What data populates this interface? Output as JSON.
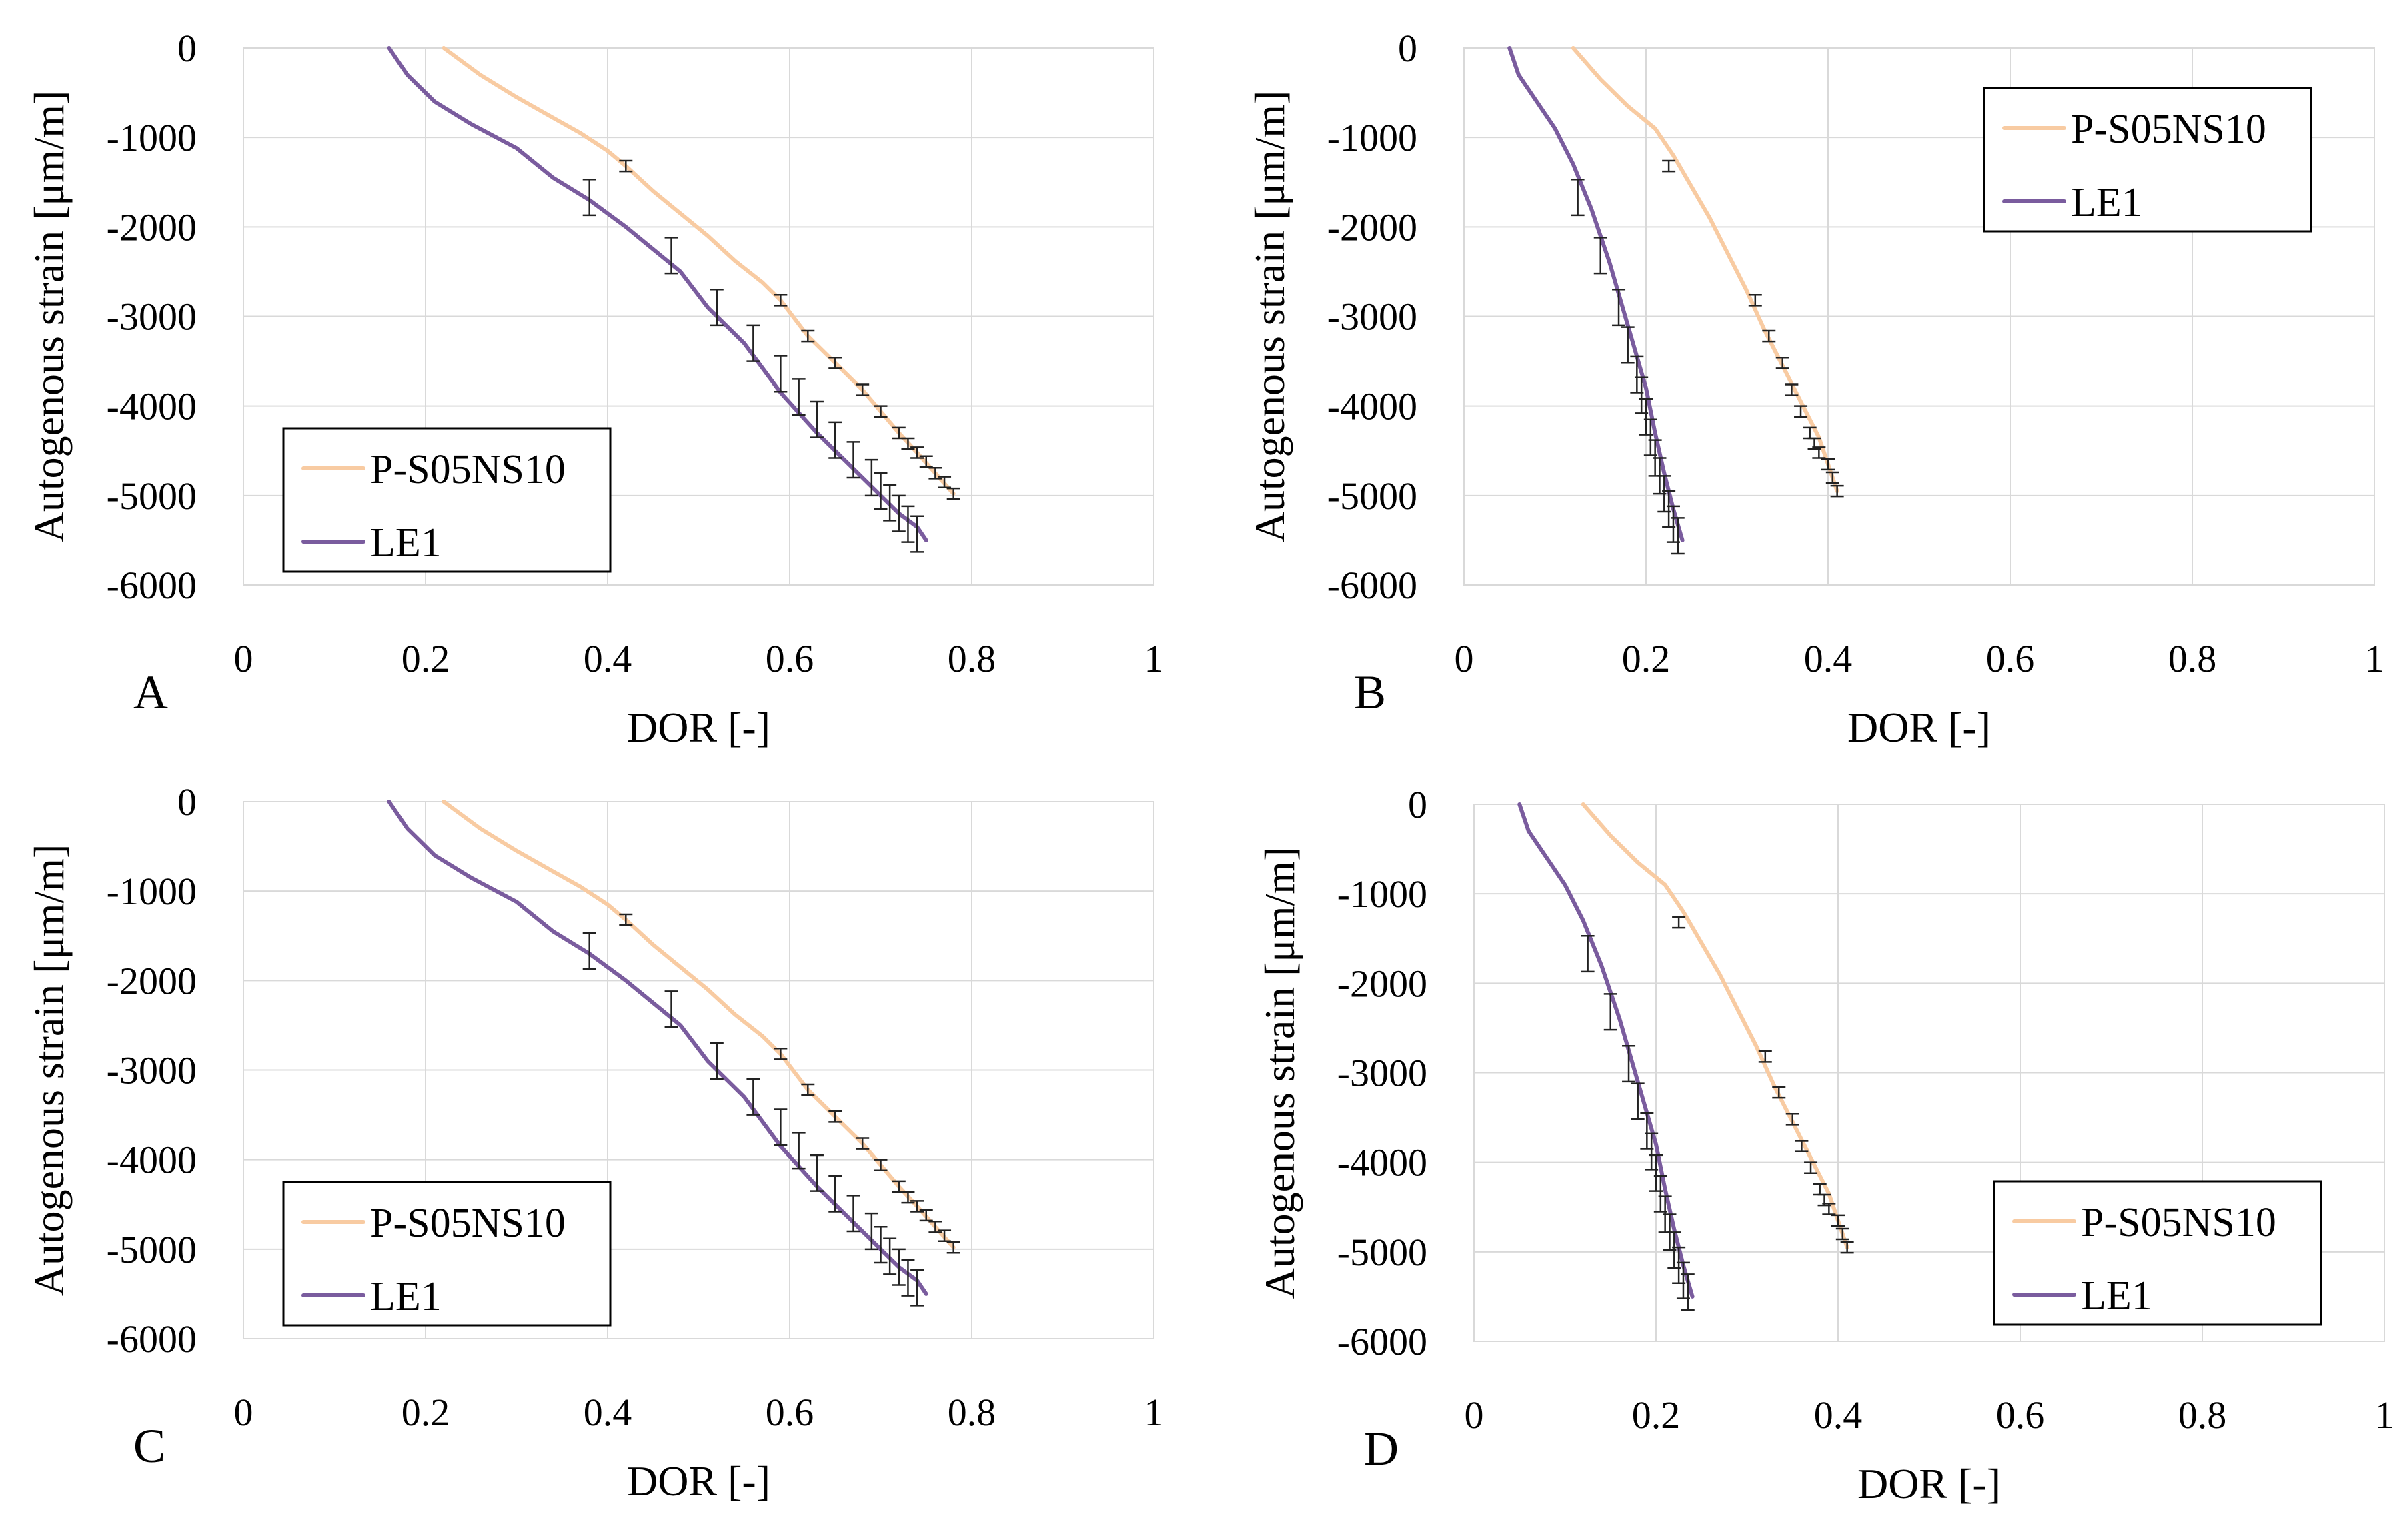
{
  "chart_data": [
    {
      "type": "line",
      "panel_label": "A",
      "xlabel": "DOR [-]",
      "ylabel": "Autogenous strain [μm/m]",
      "xlim": [
        0,
        1
      ],
      "ylim": [
        -6000,
        0
      ],
      "xticks": [
        "0",
        "0.2",
        "0.4",
        "0.6",
        "0.8",
        "1"
      ],
      "yticks": [
        "0",
        "-1000",
        "-2000",
        "-3000",
        "-4000",
        "-5000",
        "-6000"
      ],
      "legend": "bottom-left",
      "series": [
        {
          "name": "P-S05NS10",
          "color": "#f8cba2",
          "x": [
            0.22,
            0.26,
            0.3,
            0.34,
            0.37,
            0.4,
            0.42,
            0.45,
            0.48,
            0.51,
            0.54,
            0.57,
            0.59,
            0.62,
            0.65,
            0.68,
            0.7,
            0.72,
            0.74,
            0.76,
            0.78
          ],
          "y": [
            0,
            -300,
            -550,
            -780,
            -950,
            -1150,
            -1320,
            -1600,
            -1850,
            -2100,
            -2380,
            -2620,
            -2820,
            -3220,
            -3520,
            -3820,
            -4060,
            -4300,
            -4520,
            -4750,
            -4980
          ],
          "error_x": [
            0.42,
            0.59,
            0.62,
            0.65,
            0.68,
            0.7,
            0.72,
            0.73,
            0.74,
            0.75,
            0.76,
            0.77,
            0.78
          ],
          "error_y": [
            -1320,
            -2820,
            -3220,
            -3520,
            -3820,
            -4060,
            -4300,
            -4420,
            -4520,
            -4620,
            -4750,
            -4850,
            -4980
          ],
          "error_size": 60
        },
        {
          "name": "LE1",
          "color": "#7a5c9e",
          "x": [
            0.16,
            0.18,
            0.21,
            0.25,
            0.3,
            0.34,
            0.38,
            0.42,
            0.45,
            0.48,
            0.51,
            0.55,
            0.59,
            0.63,
            0.67,
            0.7,
            0.72,
            0.74,
            0.75
          ],
          "y": [
            0,
            -300,
            -600,
            -850,
            -1120,
            -1450,
            -1700,
            -2000,
            -2250,
            -2500,
            -2900,
            -3300,
            -3850,
            -4300,
            -4700,
            -5000,
            -5200,
            -5350,
            -5500
          ],
          "error_x": [
            0.38,
            0.47,
            0.52,
            0.56,
            0.59,
            0.61,
            0.63,
            0.65,
            0.67,
            0.69,
            0.7,
            0.71,
            0.72,
            0.73,
            0.74
          ],
          "error_y": [
            -1670,
            -2320,
            -2900,
            -3300,
            -3640,
            -3900,
            -4150,
            -4380,
            -4600,
            -4800,
            -4950,
            -5080,
            -5200,
            -5320,
            -5430
          ],
          "error_size": 200
        }
      ]
    },
    {
      "type": "line",
      "panel_label": "B",
      "xlabel": "DOR [-]",
      "ylabel": "Autogenous strain [μm/m]",
      "xlim": [
        0,
        1
      ],
      "ylim": [
        -6000,
        0
      ],
      "xticks": [
        "0",
        "0.2",
        "0.4",
        "0.6",
        "0.8",
        "1"
      ],
      "yticks": [
        "0",
        "-1000",
        "-2000",
        "-3000",
        "-4000",
        "-5000",
        "-6000"
      ],
      "legend": "top-right",
      "series": [
        {
          "name": "P-S05NS10",
          "color": "#f8cba2",
          "x": [
            0.12,
            0.15,
            0.18,
            0.21,
            0.23,
            0.25,
            0.27,
            0.29,
            0.31,
            0.33,
            0.35,
            0.37,
            0.39,
            0.4,
            0.41
          ],
          "y": [
            0,
            -350,
            -650,
            -900,
            -1200,
            -1550,
            -1900,
            -2300,
            -2700,
            -3150,
            -3550,
            -3950,
            -4350,
            -4650,
            -4950
          ],
          "error_x": [
            0.225,
            0.32,
            0.335,
            0.35,
            0.36,
            0.37,
            0.38,
            0.385,
            0.39,
            0.4,
            0.405,
            0.41
          ],
          "error_y": [
            -1320,
            -2820,
            -3220,
            -3520,
            -3820,
            -4060,
            -4300,
            -4420,
            -4520,
            -4650,
            -4800,
            -4950
          ],
          "error_size": 60
        },
        {
          "name": "LE1",
          "color": "#7a5c9e",
          "x": [
            0.05,
            0.06,
            0.08,
            0.1,
            0.12,
            0.14,
            0.16,
            0.18,
            0.2,
            0.21,
            0.22,
            0.23,
            0.24
          ],
          "y": [
            0,
            -300,
            -600,
            -900,
            -1300,
            -1800,
            -2400,
            -3100,
            -3800,
            -4300,
            -4750,
            -5150,
            -5500
          ],
          "error_x": [
            0.125,
            0.15,
            0.17,
            0.18,
            0.19,
            0.195,
            0.2,
            0.205,
            0.21,
            0.215,
            0.22,
            0.225,
            0.23,
            0.235
          ],
          "error_y": [
            -1670,
            -2320,
            -2900,
            -3320,
            -3650,
            -3880,
            -4120,
            -4350,
            -4580,
            -4780,
            -4980,
            -5150,
            -5320,
            -5450
          ],
          "error_size": 200
        }
      ]
    },
    {
      "type": "line",
      "panel_label": "C",
      "xlabel": "DOR [-]",
      "ylabel": "Autogenous strain [μm/m]",
      "xlim": [
        0,
        1
      ],
      "ylim": [
        -6000,
        0
      ],
      "xticks": [
        "0",
        "0.2",
        "0.4",
        "0.6",
        "0.8",
        "1"
      ],
      "yticks": [
        "0",
        "-1000",
        "-2000",
        "-3000",
        "-4000",
        "-5000",
        "-6000"
      ],
      "legend": "bottom-left",
      "series": [
        {
          "name": "P-S05NS10",
          "color": "#f8cba2",
          "x": [
            0.22,
            0.26,
            0.3,
            0.34,
            0.37,
            0.4,
            0.42,
            0.45,
            0.48,
            0.51,
            0.54,
            0.57,
            0.59,
            0.62,
            0.65,
            0.68,
            0.7,
            0.72,
            0.74,
            0.76,
            0.78
          ],
          "y": [
            0,
            -300,
            -550,
            -780,
            -950,
            -1150,
            -1320,
            -1600,
            -1850,
            -2100,
            -2380,
            -2620,
            -2820,
            -3220,
            -3520,
            -3820,
            -4060,
            -4300,
            -4520,
            -4750,
            -4980
          ],
          "error_x": [
            0.42,
            0.59,
            0.62,
            0.65,
            0.68,
            0.7,
            0.72,
            0.73,
            0.74,
            0.75,
            0.76,
            0.77,
            0.78
          ],
          "error_y": [
            -1320,
            -2820,
            -3220,
            -3520,
            -3820,
            -4060,
            -4300,
            -4420,
            -4520,
            -4620,
            -4750,
            -4850,
            -4980
          ],
          "error_size": 60
        },
        {
          "name": "LE1",
          "color": "#7a5c9e",
          "x": [
            0.16,
            0.18,
            0.21,
            0.25,
            0.3,
            0.34,
            0.38,
            0.42,
            0.45,
            0.48,
            0.51,
            0.55,
            0.59,
            0.63,
            0.67,
            0.7,
            0.72,
            0.74,
            0.75
          ],
          "y": [
            0,
            -300,
            -600,
            -850,
            -1120,
            -1450,
            -1700,
            -2000,
            -2250,
            -2500,
            -2900,
            -3300,
            -3850,
            -4300,
            -4700,
            -5000,
            -5200,
            -5350,
            -5500
          ],
          "error_x": [
            0.38,
            0.47,
            0.52,
            0.56,
            0.59,
            0.61,
            0.63,
            0.65,
            0.67,
            0.69,
            0.7,
            0.71,
            0.72,
            0.73,
            0.74
          ],
          "error_y": [
            -1670,
            -2320,
            -2900,
            -3300,
            -3640,
            -3900,
            -4150,
            -4380,
            -4600,
            -4800,
            -4950,
            -5080,
            -5200,
            -5320,
            -5430
          ],
          "error_size": 200
        }
      ]
    },
    {
      "type": "line",
      "panel_label": "D",
      "xlabel": "DOR [-]",
      "ylabel": "Autogenous strain [μm/m]",
      "xlim": [
        0,
        1
      ],
      "ylim": [
        -6000,
        0
      ],
      "xticks": [
        "0",
        "0.2",
        "0.4",
        "0.6",
        "0.8",
        "1"
      ],
      "yticks": [
        "0",
        "-1000",
        "-2000",
        "-3000",
        "-4000",
        "-5000",
        "-6000"
      ],
      "legend": "bottom-right",
      "series": [
        {
          "name": "P-S05NS10",
          "color": "#f8cba2",
          "x": [
            0.12,
            0.15,
            0.18,
            0.21,
            0.23,
            0.25,
            0.27,
            0.29,
            0.31,
            0.33,
            0.35,
            0.37,
            0.39,
            0.4,
            0.41
          ],
          "y": [
            0,
            -350,
            -650,
            -900,
            -1200,
            -1550,
            -1900,
            -2300,
            -2700,
            -3150,
            -3550,
            -3950,
            -4350,
            -4650,
            -4950
          ],
          "error_x": [
            0.225,
            0.32,
            0.335,
            0.35,
            0.36,
            0.37,
            0.38,
            0.385,
            0.39,
            0.4,
            0.405,
            0.41
          ],
          "error_y": [
            -1320,
            -2820,
            -3220,
            -3520,
            -3820,
            -4060,
            -4300,
            -4420,
            -4520,
            -4650,
            -4800,
            -4950
          ],
          "error_size": 60
        },
        {
          "name": "LE1",
          "color": "#7a5c9e",
          "x": [
            0.05,
            0.06,
            0.08,
            0.1,
            0.12,
            0.14,
            0.16,
            0.18,
            0.2,
            0.21,
            0.22,
            0.23,
            0.24
          ],
          "y": [
            0,
            -300,
            -600,
            -900,
            -1300,
            -1800,
            -2400,
            -3100,
            -3800,
            -4300,
            -4750,
            -5150,
            -5500
          ],
          "error_x": [
            0.125,
            0.15,
            0.17,
            0.18,
            0.19,
            0.195,
            0.2,
            0.205,
            0.21,
            0.215,
            0.22,
            0.225,
            0.23,
            0.235
          ],
          "error_y": [
            -1670,
            -2320,
            -2900,
            -3320,
            -3650,
            -3880,
            -4120,
            -4350,
            -4580,
            -4780,
            -4980,
            -5150,
            -5320,
            -5450
          ],
          "error_size": 200
        }
      ]
    }
  ]
}
